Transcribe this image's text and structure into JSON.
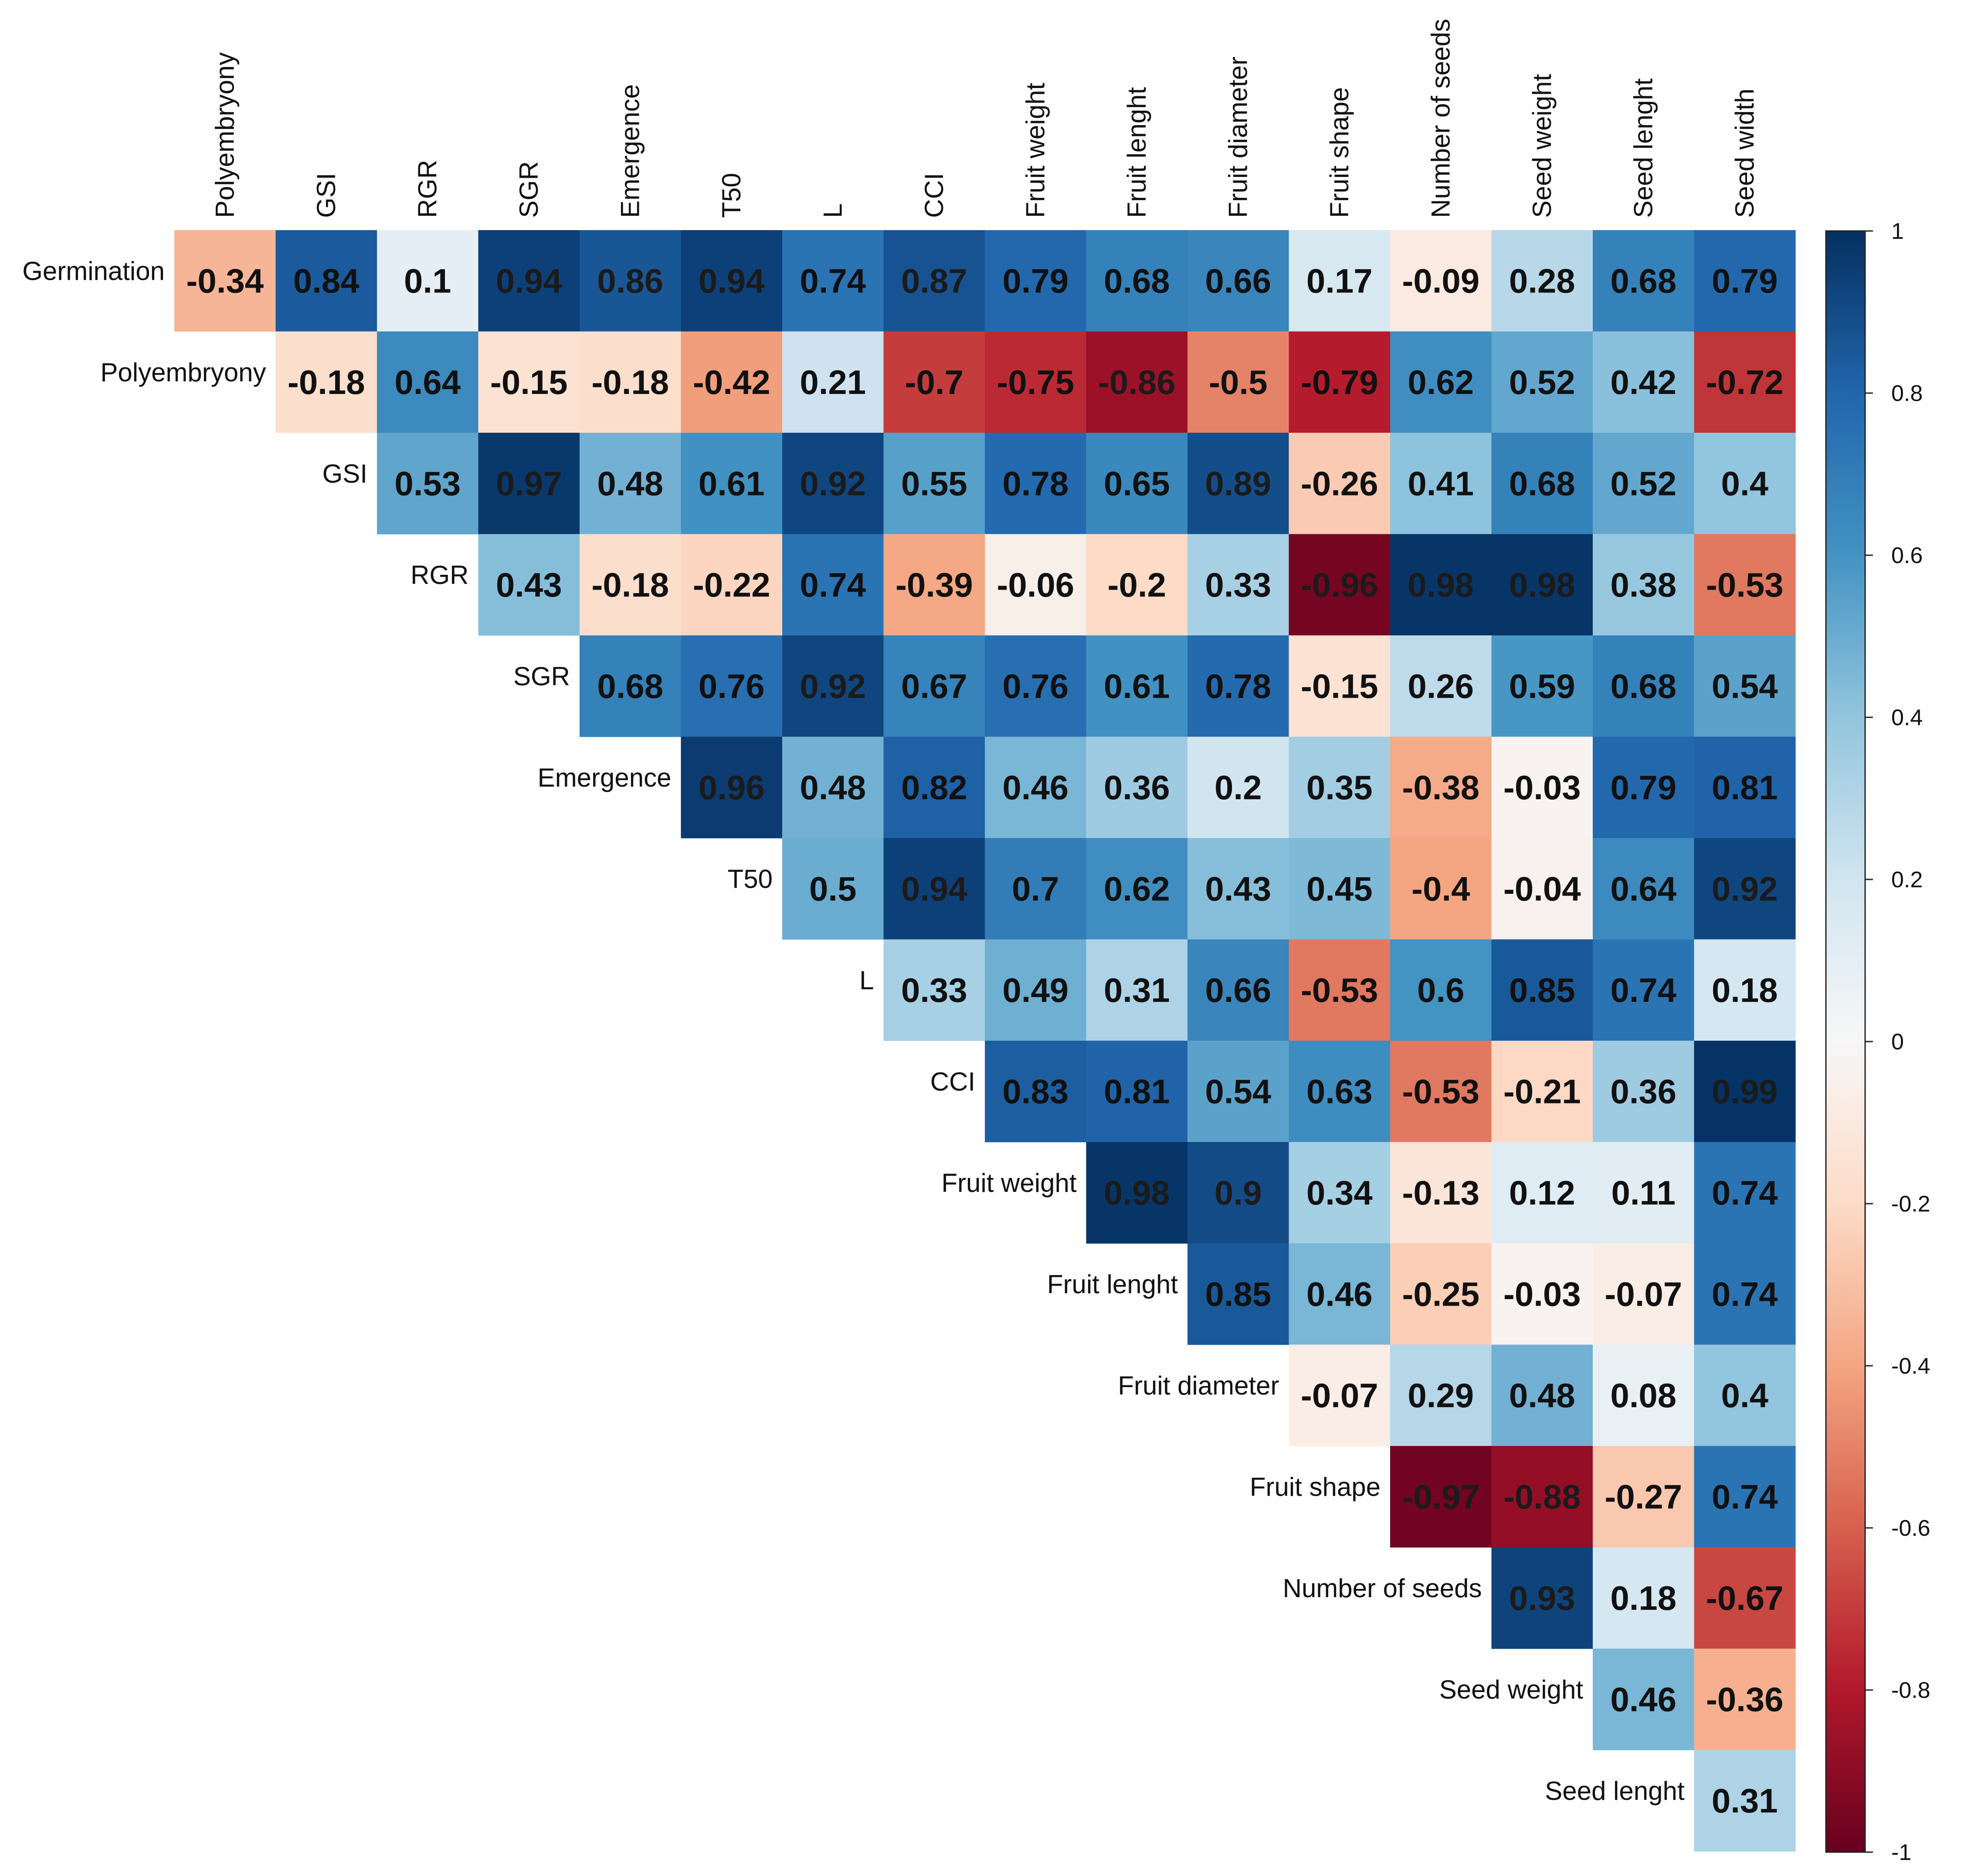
{
  "chart_data": {
    "type": "heatmap",
    "title": "",
    "row_labels": [
      "Germination",
      "Polyembryony",
      "GSI",
      "RGR",
      "SGR",
      "Emergence",
      "T50",
      "L",
      "CCI",
      "Fruit weight",
      "Fruit lenght",
      "Fruit diameter",
      "Fruit shape",
      "Number of seeds",
      "Seed weight",
      "Seed lenght"
    ],
    "column_labels": [
      "Polyembryony",
      "GSI",
      "RGR",
      "SGR",
      "Emergence",
      "T50",
      "L",
      "CCI",
      "Fruit weight",
      "Fruit lenght",
      "Fruit diameter",
      "Fruit shape",
      "Number of seeds",
      "Seed weight",
      "Seed lenght",
      "Seed width"
    ],
    "values": [
      [
        -0.34,
        0.84,
        0.1,
        0.94,
        0.86,
        0.94,
        0.74,
        0.87,
        0.79,
        0.68,
        0.66,
        0.17,
        -0.09,
        0.28,
        0.68,
        0.79
      ],
      [
        -0.18,
        0.64,
        -0.15,
        -0.18,
        -0.42,
        0.21,
        -0.7,
        -0.75,
        -0.86,
        -0.5,
        -0.79,
        0.62,
        0.52,
        0.42,
        -0.72
      ],
      [
        0.53,
        0.97,
        0.48,
        0.61,
        0.92,
        0.55,
        0.78,
        0.65,
        0.89,
        -0.26,
        0.41,
        0.68,
        0.52,
        0.4
      ],
      [
        0.43,
        -0.18,
        -0.22,
        0.74,
        -0.39,
        -0.06,
        -0.2,
        0.33,
        -0.96,
        0.98,
        0.98,
        0.38,
        -0.53
      ],
      [
        0.68,
        0.76,
        0.92,
        0.67,
        0.76,
        0.61,
        0.78,
        -0.15,
        0.26,
        0.59,
        0.68,
        0.54
      ],
      [
        0.96,
        0.48,
        0.82,
        0.46,
        0.36,
        0.2,
        0.35,
        -0.38,
        -0.03,
        0.79,
        0.81
      ],
      [
        0.5,
        0.94,
        0.7,
        0.62,
        0.43,
        0.45,
        -0.4,
        -0.04,
        0.64,
        0.92
      ],
      [
        0.33,
        0.49,
        0.31,
        0.66,
        -0.53,
        0.6,
        0.85,
        0.74,
        0.18
      ],
      [
        0.83,
        0.81,
        0.54,
        0.63,
        -0.53,
        -0.21,
        0.36,
        0.99
      ],
      [
        0.98,
        0.9,
        0.34,
        -0.13,
        0.12,
        0.11,
        0.74
      ],
      [
        0.85,
        0.46,
        -0.25,
        -0.03,
        -0.07,
        0.74
      ],
      [
        -0.07,
        0.29,
        0.48,
        0.08,
        0.4
      ],
      [
        -0.97,
        -0.88,
        -0.27,
        0.74
      ],
      [
        0.93,
        0.18,
        -0.67
      ],
      [
        0.46,
        -0.36
      ],
      [
        0.31
      ]
    ],
    "colorbar": {
      "range": [
        -1,
        1
      ],
      "ticks": [
        "1",
        "0.8",
        "0.6",
        "0.4",
        "0.2",
        "0",
        "-0.2",
        "-0.4",
        "-0.6",
        "-0.8",
        "-1"
      ],
      "colors": [
        "#67001f",
        "#b2182b",
        "#d6604d",
        "#f4a582",
        "#fddbc7",
        "#f7f7f7",
        "#d1e5f0",
        "#92c5de",
        "#4393c3",
        "#2166ac",
        "#053061"
      ]
    },
    "legend": "right"
  }
}
